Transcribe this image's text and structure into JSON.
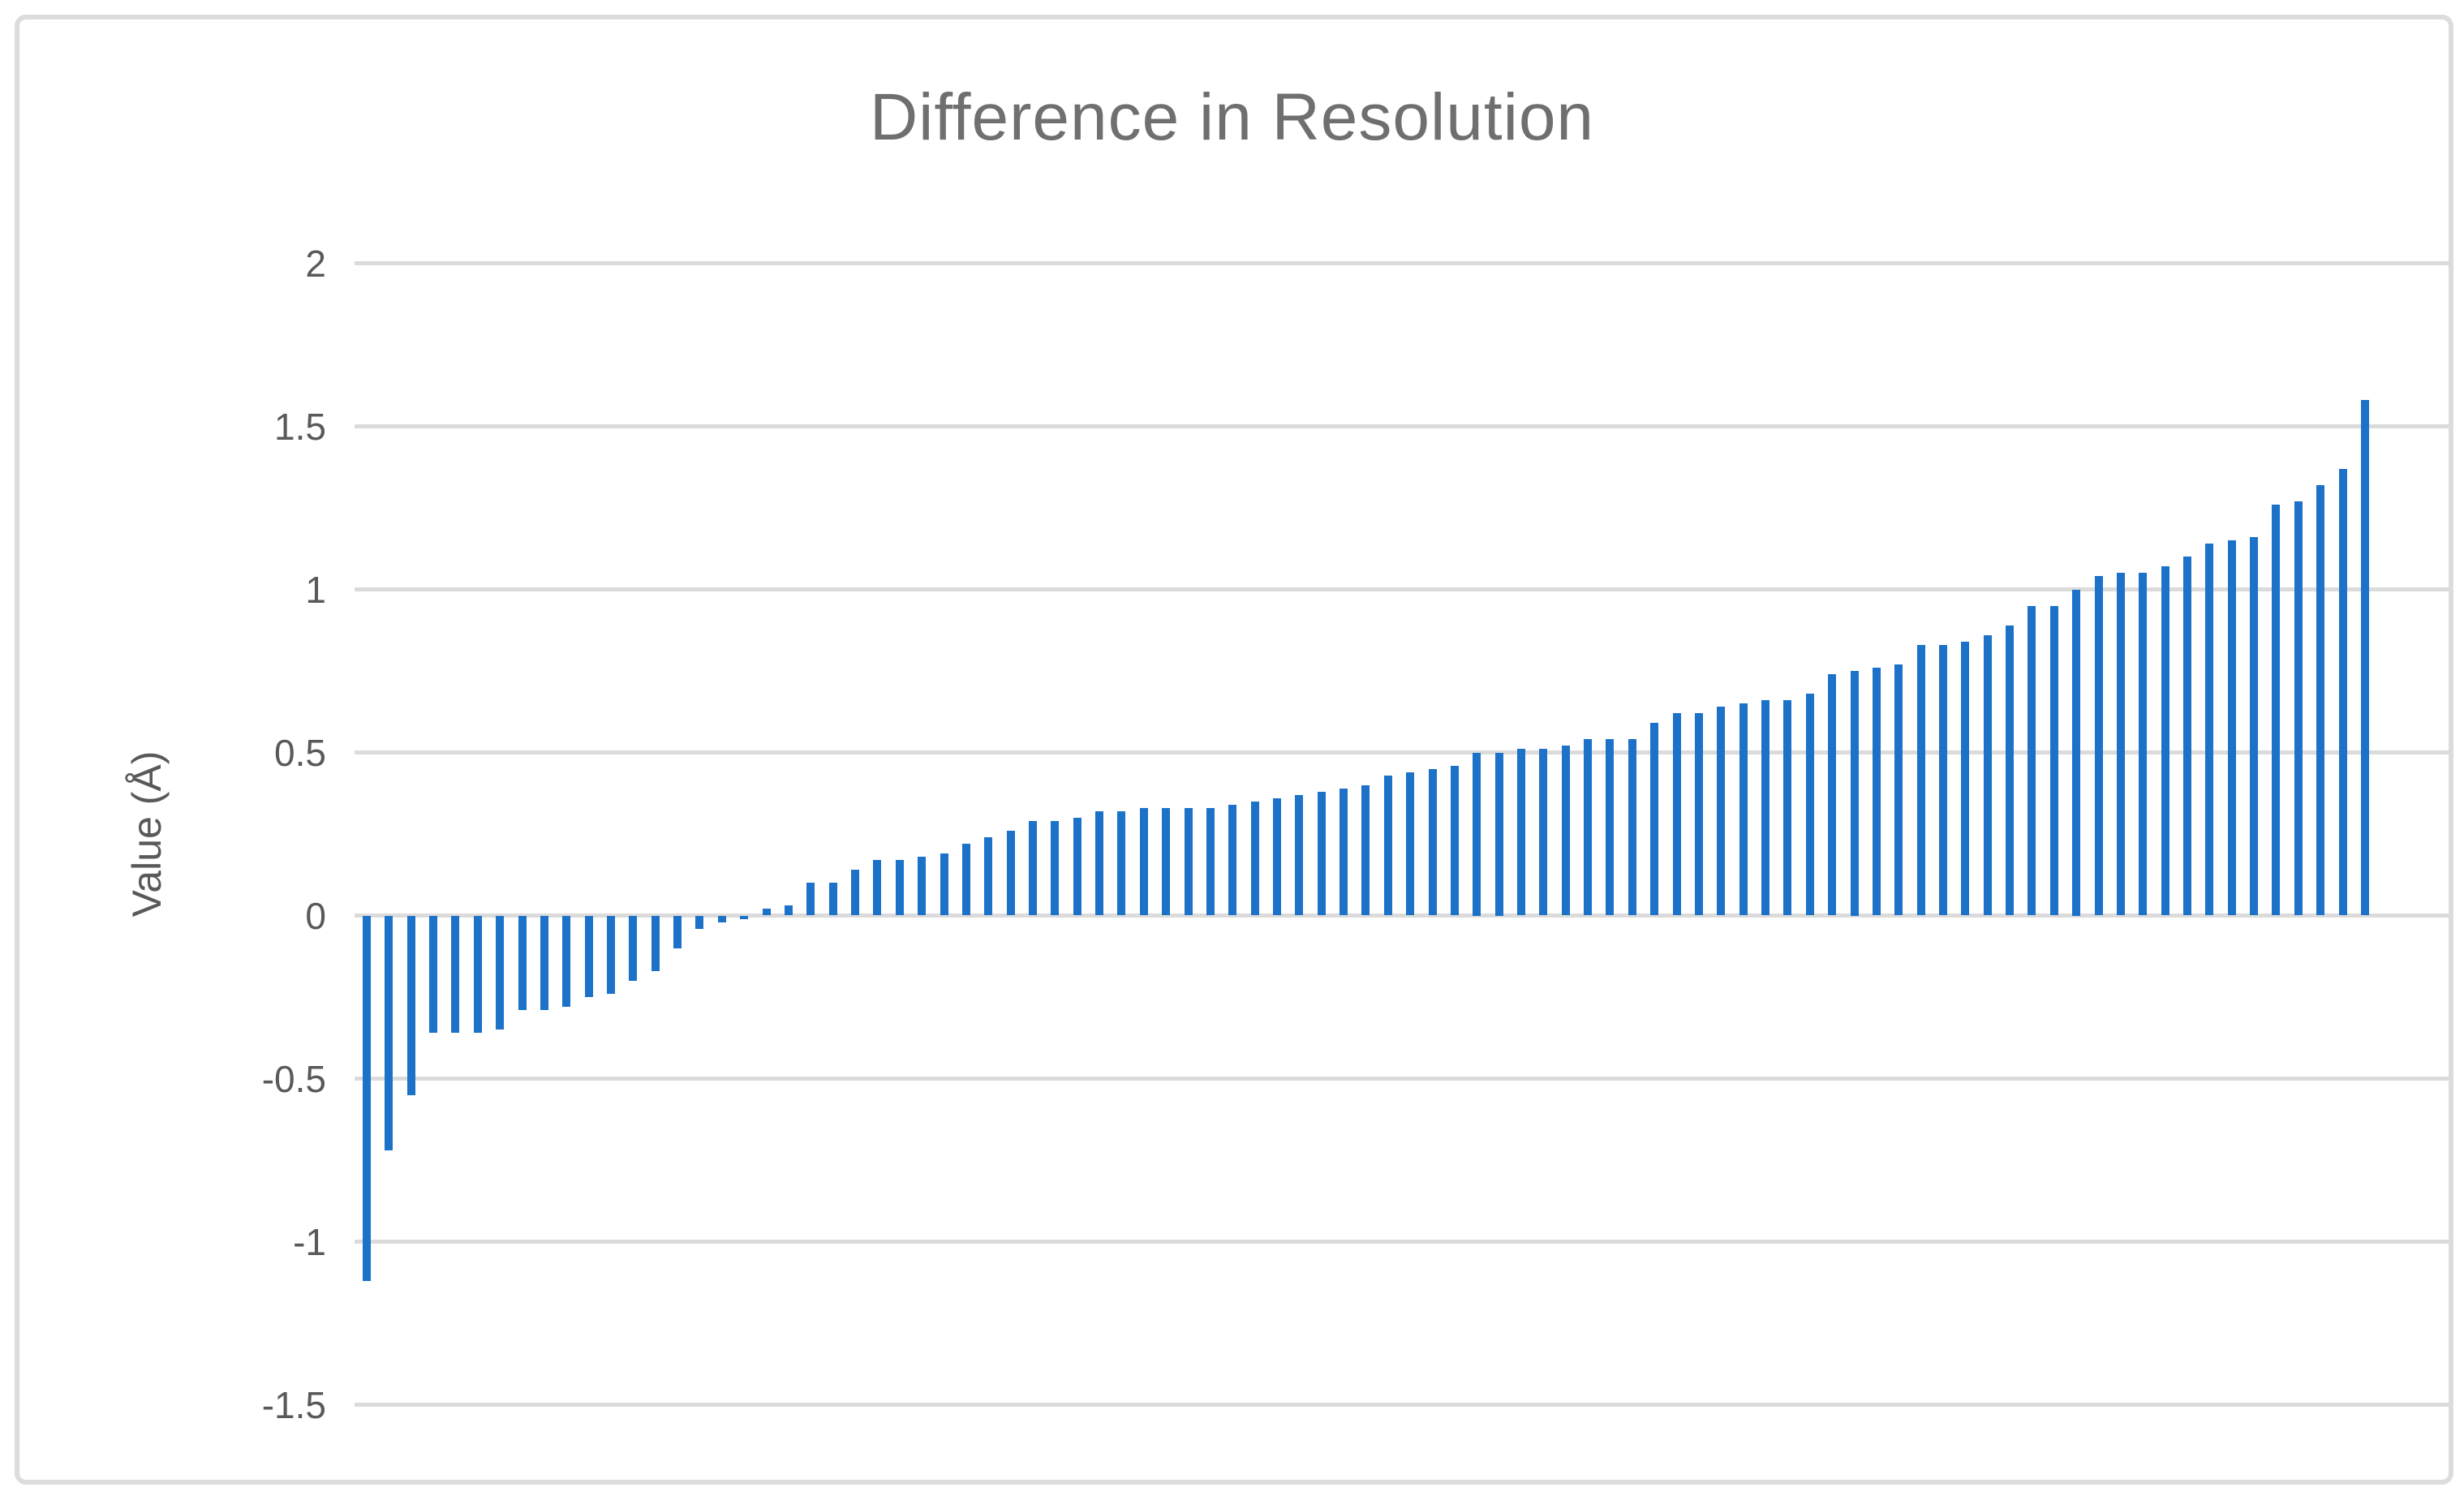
{
  "chart_data": {
    "type": "bar",
    "title": "Difference in Resolution",
    "ylabel": "Value (Å)",
    "xlabel": "",
    "x_axis_labels": "none",
    "legend": "none",
    "grid": "horizontal",
    "ylim": [
      -1.5,
      2
    ],
    "yticks": [
      2,
      1.5,
      1,
      0.5,
      0,
      -0.5,
      -1,
      -1.5
    ],
    "ytick_labels": [
      "2",
      "1.5",
      "1",
      "0.5",
      "0",
      "-0.5",
      "-1",
      "-1.5"
    ],
    "bar_color": "#1B72C8",
    "gridline_color": "#DBDBDB",
    "axis_text_color": "#595959",
    "title_color": "#6F6F6F",
    "values": [
      -1.12,
      -0.72,
      -0.55,
      -0.36,
      -0.36,
      -0.36,
      -0.35,
      -0.29,
      -0.29,
      -0.28,
      -0.25,
      -0.24,
      -0.2,
      -0.17,
      -0.1,
      -0.04,
      -0.02,
      -0.01,
      0.02,
      0.03,
      0.1,
      0.1,
      0.14,
      0.17,
      0.17,
      0.18,
      0.19,
      0.22,
      0.24,
      0.26,
      0.29,
      0.29,
      0.3,
      0.32,
      0.32,
      0.33,
      0.33,
      0.33,
      0.33,
      0.34,
      0.35,
      0.36,
      0.37,
      0.38,
      0.39,
      0.4,
      0.43,
      0.44,
      0.45,
      0.46,
      0.5,
      0.5,
      0.51,
      0.51,
      0.52,
      0.54,
      0.54,
      0.54,
      0.59,
      0.62,
      0.62,
      0.64,
      0.65,
      0.66,
      0.66,
      0.68,
      0.74,
      0.75,
      0.76,
      0.77,
      0.83,
      0.83,
      0.84,
      0.86,
      0.89,
      0.95,
      0.95,
      1.0,
      1.04,
      1.05,
      1.05,
      1.07,
      1.1,
      1.14,
      1.15,
      1.16,
      1.26,
      1.27,
      1.32,
      1.37,
      1.58
    ]
  }
}
